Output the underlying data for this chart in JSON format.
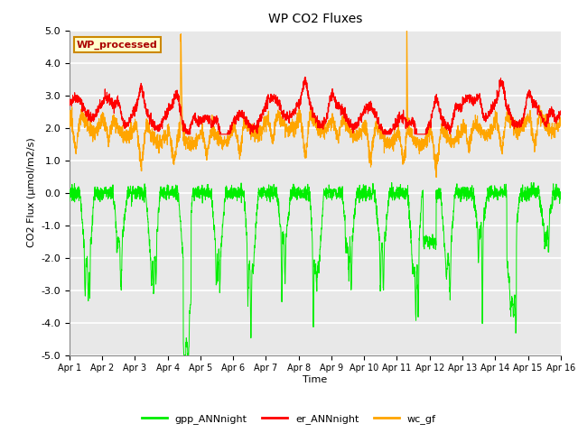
{
  "title": "WP CO2 Fluxes",
  "xlabel": "Time",
  "ylabel": "CO2 Flux (μmol/m2/s)",
  "ylim": [
    -5.0,
    5.0
  ],
  "yticks": [
    -5.0,
    -4.0,
    -3.0,
    -2.0,
    -1.0,
    0.0,
    1.0,
    2.0,
    3.0,
    4.0,
    5.0
  ],
  "xtick_labels": [
    "Apr 1",
    "Apr 2",
    "Apr 3",
    "Apr 4",
    "Apr 5",
    "Apr 6",
    "Apr 7",
    "Apr 8",
    "Apr 9",
    "Apr 10",
    "Apr 11",
    "Apr 12",
    "Apr 13",
    "Apr 14",
    "Apr 15",
    "Apr 16"
  ],
  "colors": {
    "gpp": "#00ee00",
    "er": "#ff0000",
    "wc": "#ffa500"
  },
  "legend_labels": [
    "gpp_ANNnight",
    "er_ANNnight",
    "wc_gf"
  ],
  "inset_label": "WP_processed",
  "inset_facecolor": "#ffffcc",
  "inset_edgecolor": "#cc8800",
  "inset_textcolor": "#aa0000",
  "plot_bg_color": "#e8e8e8",
  "n_points": 2880,
  "seed": 42
}
